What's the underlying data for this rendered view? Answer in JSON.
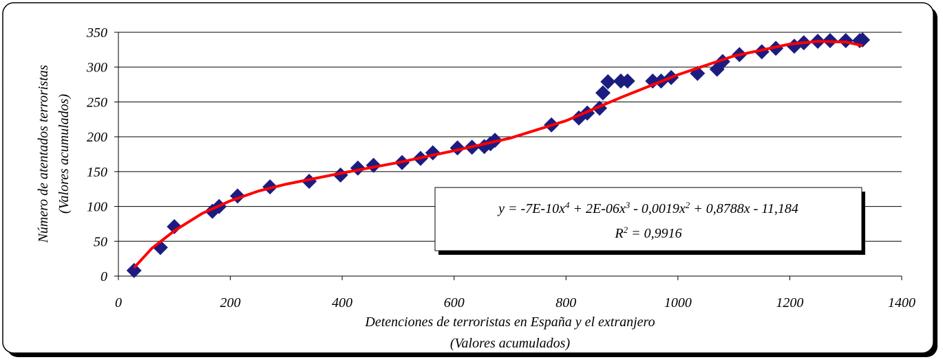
{
  "chart_data": {
    "type": "scatter",
    "xlabel": [
      "Detenciones de terroristas en España y el extranjero",
      "(Valores acumulados)"
    ],
    "ylabel": [
      "Número de atentados terroristas",
      "(Valores acumulados)"
    ],
    "xlim": [
      0,
      1400
    ],
    "xticks": [
      0,
      200,
      400,
      600,
      800,
      1000,
      1200,
      1400
    ],
    "ylim": [
      0,
      350
    ],
    "yticks": [
      0,
      50,
      100,
      150,
      200,
      250,
      300,
      350
    ],
    "grid": true,
    "color": "#1c1c80",
    "x": [
      28,
      75,
      100,
      168,
      180,
      213,
      271,
      341,
      397,
      428,
      456,
      507,
      540,
      562,
      606,
      632,
      654,
      665,
      673,
      774,
      823,
      838,
      860,
      866,
      875,
      898,
      910,
      955,
      970,
      988,
      1035,
      1070,
      1080,
      1110,
      1150,
      1175,
      1208,
      1225,
      1250,
      1272,
      1300,
      1325,
      1330
    ],
    "y": [
      8,
      41,
      71,
      93,
      100,
      115,
      128,
      136,
      145,
      155,
      159,
      163,
      169,
      177,
      184,
      185,
      186,
      190,
      195,
      217,
      227,
      234,
      241,
      263,
      279,
      280,
      280,
      280,
      280,
      285,
      291,
      297,
      308,
      318,
      322,
      327,
      330,
      335,
      337,
      338,
      338,
      338,
      339
    ],
    "trendline": {
      "color": "#ff0000",
      "x": [
        28,
        60,
        100,
        150,
        200,
        250,
        300,
        400,
        500,
        600,
        700,
        800,
        900,
        1000,
        1100,
        1200,
        1250,
        1300,
        1330
      ],
      "y": [
        12,
        40,
        65,
        90,
        108,
        122,
        132,
        148,
        163,
        180,
        198,
        223,
        257,
        289,
        316,
        333,
        337,
        336,
        331
      ]
    },
    "equation": [
      "y = -7E-10x",
      "4",
      " + 2E-06x",
      "3",
      " - 0,0019x",
      "2",
      " + 0,8788x - 11,184"
    ],
    "r_squared": [
      "R",
      "2",
      " = 0,9916"
    ]
  }
}
